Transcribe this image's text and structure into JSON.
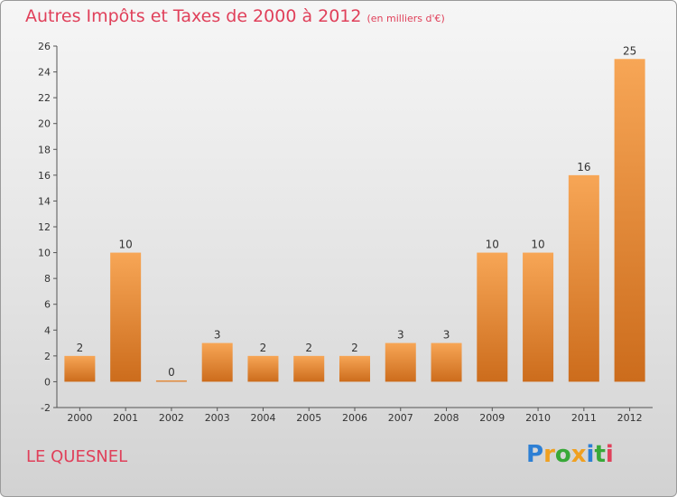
{
  "title": "Autres Impôts et Taxes de 2000 à 2012",
  "subtitle": "(en milliers d'€)",
  "location": "LE QUESNEL",
  "logo": {
    "text": "Proxiti",
    "letters": [
      {
        "ch": "P",
        "color": "#2d7fd4"
      },
      {
        "ch": "r",
        "color": "#f0a020"
      },
      {
        "ch": "o",
        "color": "#38a838"
      },
      {
        "ch": "x",
        "color": "#f0a020"
      },
      {
        "ch": "i",
        "color": "#2d7fd4"
      },
      {
        "ch": "t",
        "color": "#38a838"
      },
      {
        "ch": "i",
        "color": "#e0405a"
      }
    ]
  },
  "colors": {
    "title": "#e0405a",
    "bar_light": "#f7a656",
    "bar_dark": "#cc6c1c"
  },
  "chart_data": {
    "type": "bar",
    "categories": [
      "2000",
      "2001",
      "2002",
      "2003",
      "2004",
      "2005",
      "2006",
      "2007",
      "2008",
      "2009",
      "2010",
      "2011",
      "2012"
    ],
    "values": [
      2,
      10,
      0,
      3,
      2,
      2,
      2,
      3,
      3,
      10,
      10,
      16,
      25
    ],
    "ylim": [
      -2,
      26
    ],
    "yticks": [
      -2,
      0,
      2,
      4,
      6,
      8,
      10,
      12,
      14,
      16,
      18,
      20,
      22,
      24,
      26
    ],
    "title": "Autres Impôts et Taxes de 2000 à 2012",
    "xlabel": "",
    "ylabel": "",
    "grid": false,
    "legend": "none"
  }
}
